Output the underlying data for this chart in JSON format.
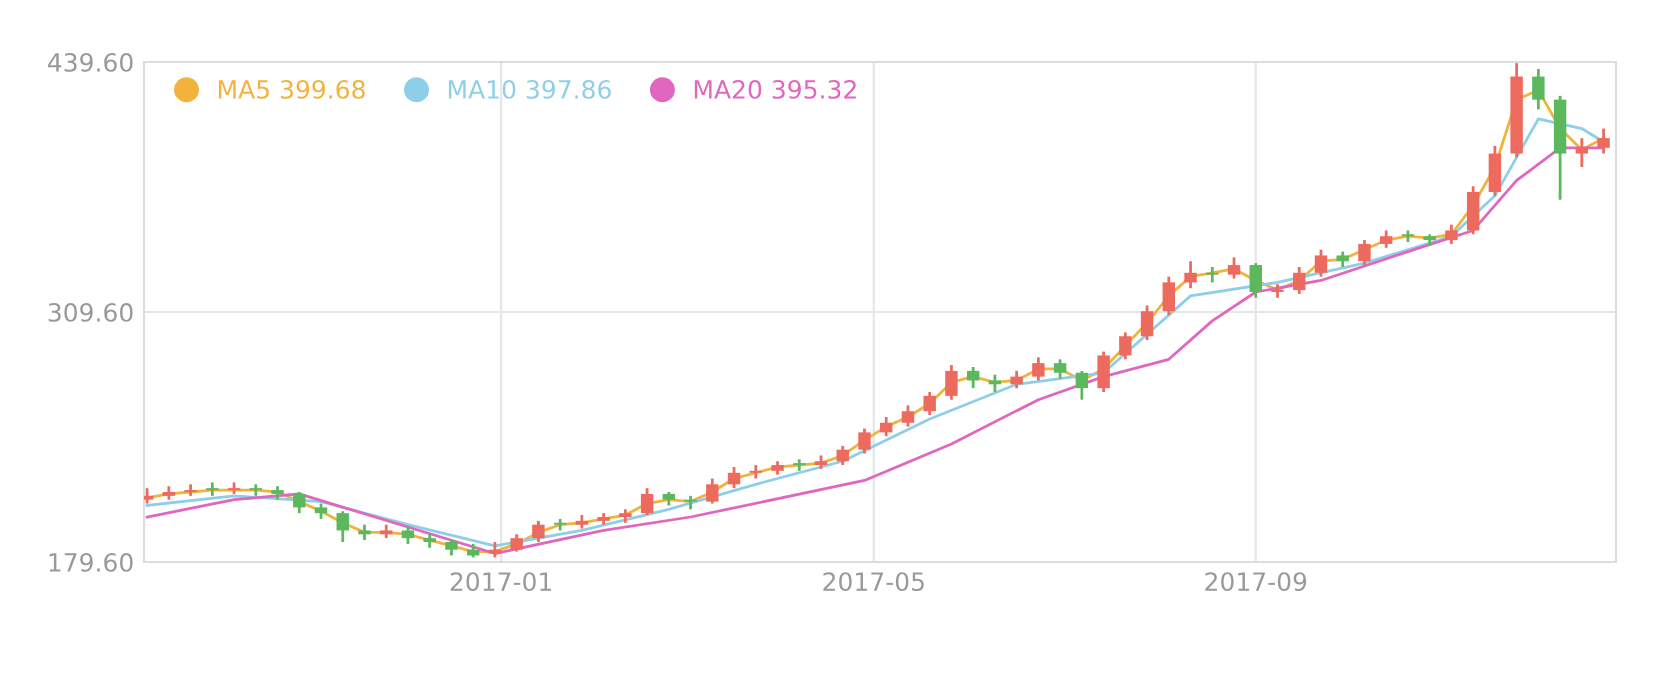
{
  "chart_data": {
    "type": "candlestick",
    "xlim": [
      "2016-09-08",
      "2017-12-26"
    ],
    "xticks": [
      {
        "value": "2017-01-01",
        "label": "2017-01"
      },
      {
        "value": "2017-05-01",
        "label": "2017-05"
      },
      {
        "value": "2017-09-01",
        "label": "2017-09"
      }
    ],
    "ylim": [
      179.6,
      439.6
    ],
    "yticks": [
      {
        "value": 179.6,
        "label": "179.60"
      },
      {
        "value": 309.6,
        "label": "309.60"
      },
      {
        "value": 439.6,
        "label": "439.60"
      }
    ],
    "grid": true,
    "legend": "top left",
    "series": [
      {
        "color": "#ec6a5e",
        "x": [
          "2016-09-09",
          "2016-09-16",
          "2016-09-23",
          "2016-10-07",
          "2016-11-25",
          "2016-12-30",
          "2017-01-06",
          "2017-01-13",
          "2017-01-27",
          "2017-02-03",
          "2017-02-10",
          "2017-02-17",
          "2017-03-10",
          "2017-03-17",
          "2017-03-24",
          "2017-03-31",
          "2017-04-14",
          "2017-04-21",
          "2017-04-28",
          "2017-05-05",
          "2017-05-12",
          "2017-05-19",
          "2017-05-26",
          "2017-06-16",
          "2017-06-23",
          "2017-07-14",
          "2017-07-21",
          "2017-07-28",
          "2017-08-04",
          "2017-08-11",
          "2017-08-25",
          "2017-09-08",
          "2017-09-15",
          "2017-09-22",
          "2017-10-06",
          "2017-10-13",
          "2017-11-03",
          "2017-11-10",
          "2017-11-17",
          "2017-11-24",
          "2017-12-15",
          "2017-12-22"
        ],
        "ohlc": [
          [
            212,
            218,
            210,
            214
          ],
          [
            214,
            219,
            212,
            216
          ],
          [
            216,
            220,
            214,
            217
          ],
          [
            217,
            221,
            215,
            218
          ],
          [
            194,
            199,
            192,
            196
          ],
          [
            184,
            190,
            182,
            186
          ],
          [
            186,
            194,
            185,
            192
          ],
          [
            192,
            201,
            190,
            199
          ],
          [
            199,
            204,
            197,
            201
          ],
          [
            201,
            205,
            199,
            203
          ],
          [
            203,
            207,
            200,
            205
          ],
          [
            205,
            218,
            204,
            215
          ],
          [
            211,
            223,
            210,
            220
          ],
          [
            220,
            229,
            218,
            226
          ],
          [
            226,
            230,
            223,
            227
          ],
          [
            227,
            232,
            225,
            230
          ],
          [
            230,
            235,
            228,
            232
          ],
          [
            232,
            240,
            230,
            238
          ],
          [
            238,
            249,
            236,
            247
          ],
          [
            247,
            255,
            245,
            252
          ],
          [
            252,
            261,
            250,
            258
          ],
          [
            258,
            268,
            256,
            266
          ],
          [
            266,
            282,
            264,
            279
          ],
          [
            272,
            279,
            270,
            276
          ],
          [
            276,
            286,
            274,
            283
          ],
          [
            270,
            289,
            268,
            287
          ],
          [
            287,
            299,
            285,
            297
          ],
          [
            297,
            313,
            295,
            310
          ],
          [
            310,
            328,
            308,
            325
          ],
          [
            325,
            336,
            322,
            330
          ],
          [
            329,
            338,
            327,
            334
          ],
          [
            320,
            324,
            317,
            321
          ],
          [
            321,
            333,
            319,
            330
          ],
          [
            330,
            342,
            328,
            339
          ],
          [
            336,
            347,
            334,
            345
          ],
          [
            345,
            352,
            343,
            349
          ],
          [
            347,
            355,
            345,
            352
          ],
          [
            352,
            375,
            350,
            372
          ],
          [
            372,
            396,
            370,
            392
          ],
          [
            392,
            439,
            390,
            432
          ],
          [
            392,
            400,
            385,
            395
          ],
          [
            395,
            405,
            392,
            400
          ]
        ]
      },
      {
        "color": "#5cb85c",
        "x": [
          "2016-09-30",
          "2016-10-14",
          "2016-10-21",
          "2016-10-28",
          "2016-11-04",
          "2016-11-11",
          "2016-11-18",
          "2016-12-02",
          "2016-12-09",
          "2016-12-16",
          "2016-12-23",
          "2017-01-20",
          "2017-02-24",
          "2017-03-03",
          "2017-04-07",
          "2017-06-02",
          "2017-06-09",
          "2017-06-30",
          "2017-07-07",
          "2017-08-18",
          "2017-09-01",
          "2017-09-29",
          "2017-10-20",
          "2017-10-27",
          "2017-12-01",
          "2017-12-08"
        ],
        "ohlc": [
          [
            218,
            221,
            214,
            217
          ],
          [
            218,
            220,
            214,
            217
          ],
          [
            217,
            219,
            212,
            215
          ],
          [
            215,
            216,
            205,
            208
          ],
          [
            208,
            210,
            202,
            205
          ],
          [
            205,
            206,
            190,
            196
          ],
          [
            196,
            199,
            191,
            194
          ],
          [
            196,
            198,
            189,
            192
          ],
          [
            192,
            194,
            187,
            190
          ],
          [
            190,
            191,
            183,
            186
          ],
          [
            186,
            189,
            182,
            183
          ],
          [
            200,
            202,
            196,
            199
          ],
          [
            215,
            216,
            209,
            212
          ],
          [
            212,
            214,
            207,
            211
          ],
          [
            231,
            233,
            227,
            230
          ],
          [
            279,
            281,
            270,
            274
          ],
          [
            274,
            277,
            268,
            272
          ],
          [
            283,
            285,
            275,
            278
          ],
          [
            278,
            279,
            264,
            270
          ],
          [
            330,
            333,
            325,
            329
          ],
          [
            334,
            335,
            317,
            320
          ],
          [
            339,
            341,
            333,
            336
          ],
          [
            350,
            352,
            346,
            349
          ],
          [
            349,
            350,
            344,
            347
          ],
          [
            432,
            436,
            415,
            420
          ],
          [
            420,
            422,
            368,
            392
          ]
        ]
      },
      {
        "type": "line",
        "name": "MA5 399.68",
        "color": "#f2b33d",
        "x": [
          "2016-09-09",
          "2016-09-16",
          "2016-09-23",
          "2016-09-30",
          "2016-10-07",
          "2016-10-14",
          "2016-10-21",
          "2016-10-28",
          "2016-11-04",
          "2016-11-11",
          "2016-11-18",
          "2016-11-25",
          "2016-12-02",
          "2016-12-09",
          "2016-12-16",
          "2016-12-23",
          "2016-12-30",
          "2017-01-06",
          "2017-01-13",
          "2017-01-20",
          "2017-01-27",
          "2017-02-03",
          "2017-02-10",
          "2017-02-17",
          "2017-02-24",
          "2017-03-03",
          "2017-03-10",
          "2017-03-17",
          "2017-03-24",
          "2017-03-31",
          "2017-04-07",
          "2017-04-14",
          "2017-04-21",
          "2017-04-28",
          "2017-05-05",
          "2017-05-12",
          "2017-05-19",
          "2017-05-26",
          "2017-06-02",
          "2017-06-09",
          "2017-06-16",
          "2017-06-23",
          "2017-06-30",
          "2017-07-07",
          "2017-07-14",
          "2017-07-21",
          "2017-07-28",
          "2017-08-04",
          "2017-08-11",
          "2017-08-18",
          "2017-08-25",
          "2017-09-01",
          "2017-09-08",
          "2017-09-15",
          "2017-09-22",
          "2017-09-29",
          "2017-10-06",
          "2017-10-13",
          "2017-10-20",
          "2017-10-27",
          "2017-11-03",
          "2017-11-10",
          "2017-11-17",
          "2017-11-24",
          "2017-12-01",
          "2017-12-08",
          "2017-12-15",
          "2017-12-22"
        ],
        "values": [
          213,
          215,
          216,
          217,
          217,
          217,
          216,
          211,
          206,
          200,
          195,
          195,
          194,
          191,
          188,
          185,
          185,
          189,
          195,
          199,
          200,
          202,
          204,
          210,
          212,
          211,
          216,
          223,
          226,
          229,
          230,
          231,
          235,
          243,
          250,
          255,
          262,
          273,
          276,
          273,
          274,
          280,
          280,
          274,
          280,
          292,
          304,
          318,
          328,
          330,
          332,
          326,
          321,
          326,
          336,
          337,
          342,
          347,
          349,
          348,
          350,
          365,
          385,
          420,
          425,
          405,
          394,
          400
        ]
      },
      {
        "type": "line",
        "name": "MA10 397.86",
        "color": "#8dcfe8",
        "x": [
          "2016-09-09",
          "2016-10-07",
          "2016-11-04",
          "2016-12-02",
          "2016-12-30",
          "2017-01-27",
          "2017-02-24",
          "2017-03-24",
          "2017-04-21",
          "2017-05-19",
          "2017-06-16",
          "2017-07-14",
          "2017-08-11",
          "2017-09-08",
          "2017-10-06",
          "2017-11-03",
          "2017-11-17",
          "2017-12-01",
          "2017-12-15",
          "2017-12-22"
        ],
        "values": [
          209,
          214,
          211,
          199,
          188,
          196,
          207,
          220,
          232,
          254,
          272,
          278,
          318,
          325,
          335,
          349,
          370,
          410,
          405,
          398
        ]
      },
      {
        "type": "line",
        "name": "MA20 395.32",
        "color": "#e066c0",
        "x": [
          "2016-09-09",
          "2016-10-07",
          "2016-10-28",
          "2016-12-30",
          "2017-02-03",
          "2017-03-03",
          "2017-04-28",
          "2017-05-26",
          "2017-06-23",
          "2017-07-14",
          "2017-08-04",
          "2017-08-18",
          "2017-09-01",
          "2017-09-22",
          "2017-10-20",
          "2017-11-10",
          "2017-11-24",
          "2017-12-08",
          "2017-12-22"
        ],
        "values": [
          203,
          212,
          215,
          184,
          196,
          203,
          222,
          241,
          264,
          276,
          285,
          305,
          320,
          326,
          341,
          352,
          378,
          395,
          395
        ]
      }
    ]
  }
}
